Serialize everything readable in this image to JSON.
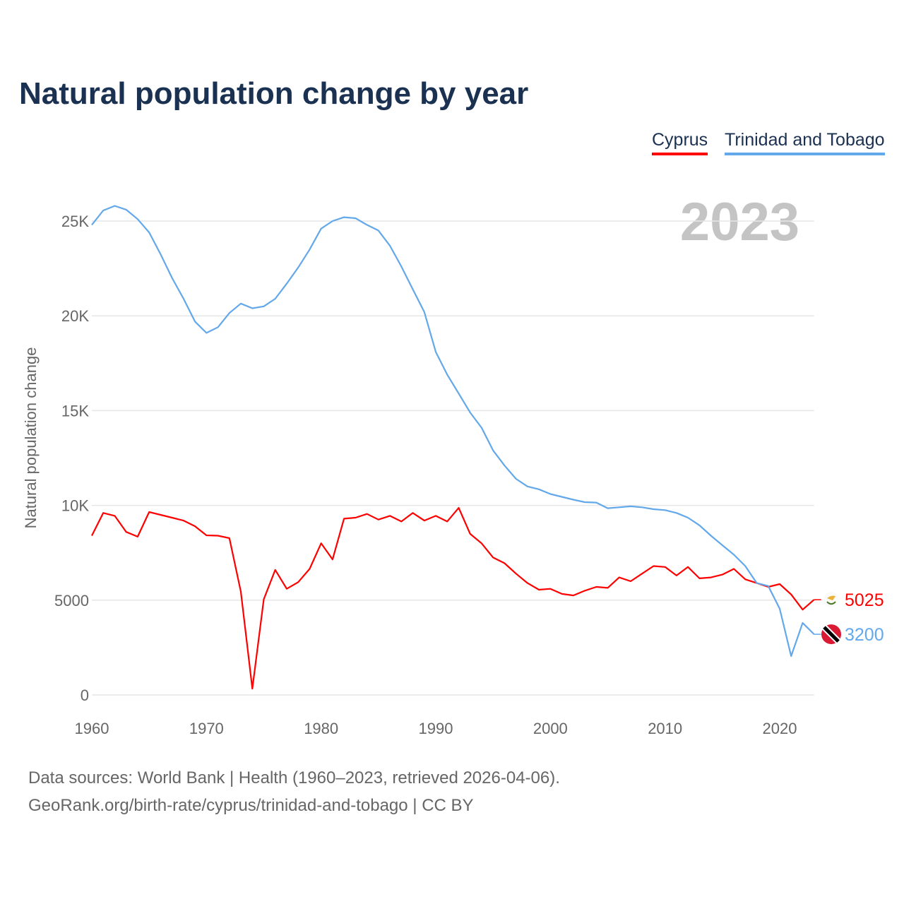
{
  "title": "Natural population change by year",
  "source_line1": "Data sources: World Bank | Health (1960–2023, retrieved 2026-04-06).",
  "source_line2": "GeoRank.org/birth-rate/cyprus/trinidad-and-tobago | CC BY",
  "chart_data": {
    "type": "line",
    "title": "Natural population change by year",
    "xlabel": "",
    "ylabel": "Natural population change",
    "year_label": "2023",
    "xlim": [
      1960,
      2023
    ],
    "ylim": [
      0,
      26500
    ],
    "grid": true,
    "legend_position": "top-right",
    "x_ticks": [
      1960,
      1970,
      1980,
      1990,
      2000,
      2010,
      2020
    ],
    "x_tick_labels": [
      "1960",
      "1970",
      "1980",
      "1990",
      "2000",
      "2010",
      "2020"
    ],
    "y_ticks": [
      0,
      5000,
      10000,
      15000,
      20000,
      25000
    ],
    "y_tick_labels": [
      "0",
      "5000",
      "10K",
      "15K",
      "20K",
      "25K"
    ],
    "x": [
      1960,
      1961,
      1962,
      1963,
      1964,
      1965,
      1966,
      1967,
      1968,
      1969,
      1970,
      1971,
      1972,
      1973,
      1974,
      1975,
      1976,
      1977,
      1978,
      1979,
      1980,
      1981,
      1982,
      1983,
      1984,
      1985,
      1986,
      1987,
      1988,
      1989,
      1990,
      1991,
      1992,
      1993,
      1994,
      1995,
      1996,
      1997,
      1998,
      1999,
      2000,
      2001,
      2002,
      2003,
      2004,
      2005,
      2006,
      2007,
      2008,
      2009,
      2010,
      2011,
      2012,
      2013,
      2014,
      2015,
      2016,
      2017,
      2018,
      2019,
      2020,
      2021,
      2022,
      2023
    ],
    "series": [
      {
        "name": "Cyprus",
        "color": "#ff0000",
        "end_label": "5025",
        "values": [
          8400,
          9600,
          9450,
          8600,
          8350,
          9650,
          9500,
          9350,
          9200,
          8900,
          8420,
          8400,
          8270,
          5450,
          330,
          5050,
          6600,
          5600,
          5950,
          6650,
          8000,
          7150,
          9300,
          9350,
          9550,
          9250,
          9450,
          9150,
          9600,
          9200,
          9450,
          9150,
          9870,
          8500,
          8000,
          7250,
          6950,
          6400,
          5900,
          5550,
          5600,
          5330,
          5250,
          5500,
          5700,
          5650,
          6200,
          6000,
          6400,
          6800,
          6750,
          6300,
          6750,
          6150,
          6200,
          6350,
          6650,
          6100,
          5900,
          5700,
          5850,
          5300,
          4500,
          5025
        ]
      },
      {
        "name": "Trinidad and Tobago",
        "color": "#62a8ea",
        "end_label": "3200",
        "values": [
          24800,
          25560,
          25800,
          25600,
          25100,
          24400,
          23250,
          22000,
          20900,
          19700,
          19100,
          19400,
          20150,
          20650,
          20400,
          20500,
          20900,
          21700,
          22550,
          23500,
          24600,
          25000,
          25200,
          25150,
          24800,
          24500,
          23700,
          22600,
          21400,
          20200,
          18100,
          16900,
          15900,
          14900,
          14100,
          12900,
          12100,
          11400,
          11000,
          10850,
          10600,
          10450,
          10300,
          10170,
          10150,
          9850,
          9900,
          9950,
          9900,
          9800,
          9750,
          9600,
          9350,
          8950,
          8400,
          7900,
          7400,
          6800,
          5900,
          5750,
          4550,
          2050,
          3800,
          3200
        ]
      }
    ]
  }
}
